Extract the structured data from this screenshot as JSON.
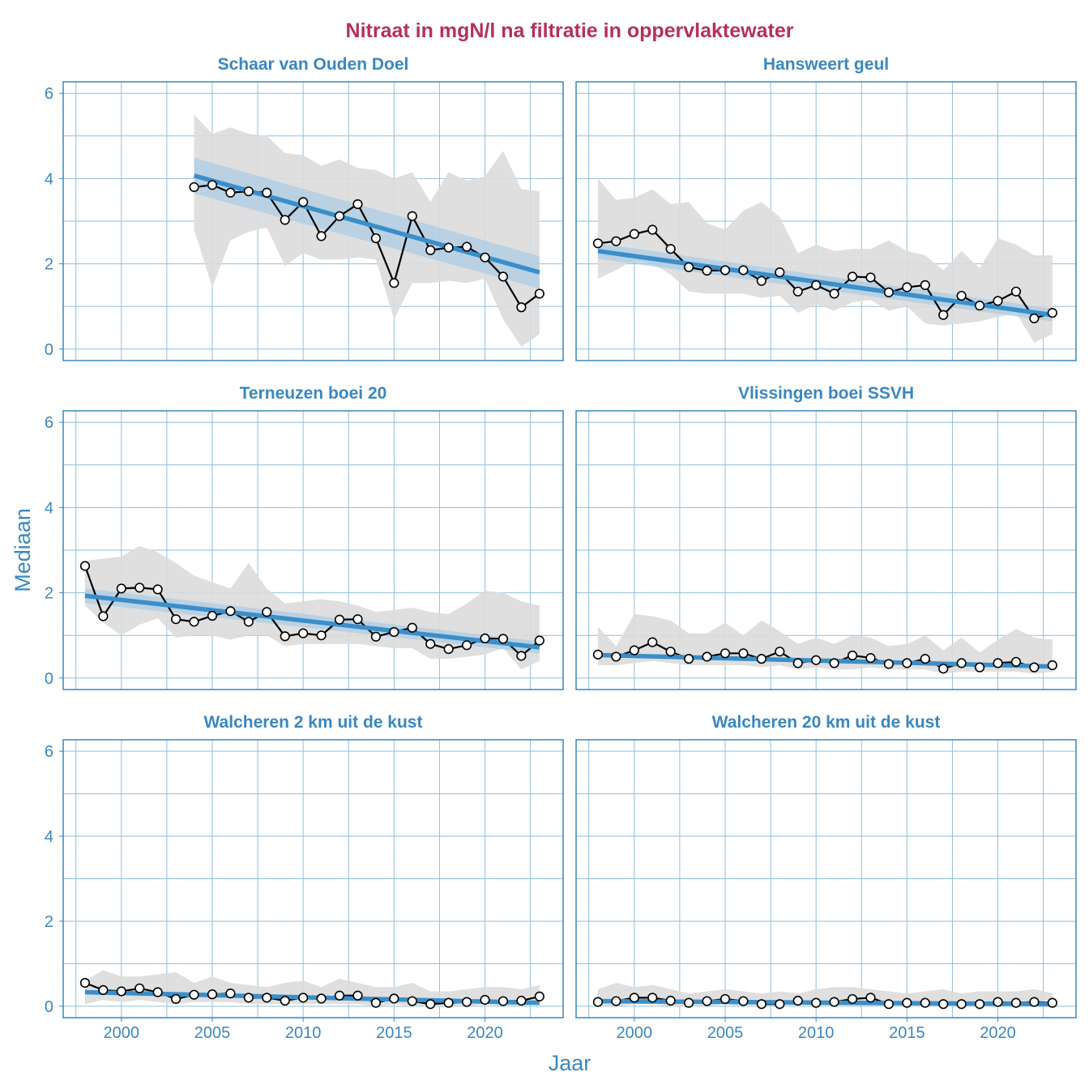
{
  "chart_data": {
    "type": "line",
    "title": "Nitraat in mgN/l na filtratie in oppervlaktewater",
    "xlabel": "Jaar",
    "ylabel": "Mediaan",
    "xlim": [
      1996.8,
      2024.3
    ],
    "ylim": [
      -0.27,
      6.27
    ],
    "xticks": [
      2000,
      2005,
      2010,
      2015,
      2020
    ],
    "yticks": [
      0,
      2,
      4,
      6
    ],
    "colors": {
      "title": "#b5315d",
      "axis": "#3a87bf",
      "trend": "#3a8ec9",
      "trend_band": "#a8cbe4",
      "range_band": "#dcdcdc",
      "points": "#000000"
    },
    "panels": [
      {
        "name": "Schaar van Ouden Doel",
        "x": [
          2004,
          2005,
          2006,
          2007,
          2008,
          2009,
          2010,
          2011,
          2012,
          2013,
          2014,
          2015,
          2016,
          2017,
          2018,
          2019,
          2020,
          2021,
          2022,
          2023
        ],
        "median": [
          3.8,
          3.85,
          3.67,
          3.7,
          3.67,
          3.03,
          3.45,
          2.65,
          3.12,
          3.4,
          2.6,
          1.55,
          3.12,
          2.32,
          2.38,
          2.4,
          2.15,
          1.7,
          0.98,
          1.3
        ],
        "range_low": [
          2.8,
          1.45,
          2.55,
          2.75,
          2.85,
          1.95,
          2.25,
          2.1,
          2.1,
          2.15,
          2.1,
          0.7,
          1.55,
          1.55,
          1.6,
          1.55,
          1.65,
          0.7,
          0.05,
          0.35
        ],
        "range_high": [
          5.5,
          5.05,
          5.2,
          5.05,
          5.0,
          4.6,
          4.55,
          4.3,
          4.45,
          4.25,
          4.2,
          4.0,
          4.15,
          3.45,
          4.15,
          3.95,
          4.05,
          4.65,
          3.75,
          3.7
        ],
        "trend": [
          4.07,
          1.8
        ],
        "trend_ci": [
          0.42,
          0.38
        ]
      },
      {
        "name": "Hansweert geul",
        "x": [
          1998,
          1999,
          2000,
          2001,
          2002,
          2003,
          2004,
          2005,
          2006,
          2007,
          2008,
          2009,
          2010,
          2011,
          2012,
          2013,
          2014,
          2015,
          2016,
          2017,
          2018,
          2019,
          2020,
          2021,
          2022,
          2023
        ],
        "median": [
          2.48,
          2.53,
          2.7,
          2.8,
          2.35,
          1.92,
          1.84,
          1.85,
          1.85,
          1.6,
          1.8,
          1.35,
          1.5,
          1.3,
          1.7,
          1.68,
          1.33,
          1.45,
          1.5,
          0.8,
          1.25,
          1.02,
          1.13,
          1.35,
          0.72,
          0.85
        ],
        "range_low": [
          1.65,
          1.85,
          2.1,
          2.0,
          1.75,
          1.35,
          1.3,
          1.3,
          1.3,
          1.2,
          1.25,
          0.85,
          1.05,
          0.9,
          1.1,
          1.15,
          0.9,
          1.0,
          0.6,
          0.55,
          0.6,
          0.65,
          0.75,
          0.85,
          0.15,
          0.35
        ],
        "range_high": [
          4.0,
          3.5,
          3.55,
          3.75,
          3.4,
          3.45,
          2.95,
          2.8,
          3.25,
          3.45,
          3.1,
          2.25,
          2.45,
          2.3,
          2.35,
          2.35,
          2.55,
          2.3,
          2.2,
          1.85,
          2.3,
          1.9,
          2.6,
          2.45,
          2.2,
          2.2
        ],
        "trend": [
          2.3,
          0.8
        ],
        "trend_ci": [
          0.18,
          0.15
        ]
      },
      {
        "name": "Terneuzen boei 20",
        "x": [
          1998,
          1999,
          2000,
          2001,
          2002,
          2003,
          2004,
          2005,
          2006,
          2007,
          2008,
          2009,
          2010,
          2011,
          2012,
          2013,
          2014,
          2015,
          2016,
          2017,
          2018,
          2019,
          2020,
          2021,
          2022,
          2023
        ],
        "median": [
          2.63,
          1.45,
          2.1,
          2.12,
          2.08,
          1.38,
          1.32,
          1.46,
          1.57,
          1.32,
          1.55,
          0.98,
          1.05,
          1.0,
          1.37,
          1.38,
          0.97,
          1.08,
          1.18,
          0.8,
          0.68,
          0.77,
          0.93,
          0.92,
          0.52,
          0.88
        ],
        "range_low": [
          1.7,
          1.3,
          1.0,
          1.25,
          1.4,
          0.95,
          1.0,
          1.0,
          0.9,
          1.0,
          1.0,
          0.75,
          0.8,
          0.8,
          0.8,
          0.8,
          0.75,
          0.7,
          0.7,
          0.45,
          0.45,
          0.5,
          0.55,
          0.7,
          0.2,
          0.4
        ],
        "range_high": [
          2.75,
          2.8,
          2.85,
          3.1,
          2.95,
          2.7,
          2.4,
          2.25,
          2.1,
          2.7,
          2.1,
          1.75,
          1.8,
          1.85,
          1.8,
          1.7,
          1.55,
          1.6,
          1.65,
          1.55,
          1.5,
          1.75,
          2.05,
          2.0,
          1.8,
          1.7
        ],
        "trend": [
          1.93,
          0.72
        ],
        "trend_ci": [
          0.17,
          0.14
        ]
      },
      {
        "name": "Vlissingen boei SSVH",
        "x": [
          1998,
          1999,
          2000,
          2001,
          2002,
          2003,
          2004,
          2005,
          2006,
          2007,
          2008,
          2009,
          2010,
          2011,
          2012,
          2013,
          2014,
          2015,
          2016,
          2017,
          2018,
          2019,
          2020,
          2021,
          2022,
          2023
        ],
        "median": [
          0.55,
          0.5,
          0.65,
          0.84,
          0.62,
          0.45,
          0.5,
          0.58,
          0.58,
          0.45,
          0.62,
          0.35,
          0.42,
          0.35,
          0.53,
          0.47,
          0.33,
          0.35,
          0.45,
          0.22,
          0.35,
          0.25,
          0.35,
          0.38,
          0.25,
          0.3
        ],
        "range_low": [
          0.3,
          0.3,
          0.35,
          0.4,
          0.35,
          0.3,
          0.3,
          0.3,
          0.3,
          0.25,
          0.3,
          0.2,
          0.25,
          0.2,
          0.2,
          0.25,
          0.2,
          0.2,
          0.2,
          0.1,
          0.15,
          0.15,
          0.15,
          0.15,
          0.1,
          0.15
        ],
        "range_high": [
          1.2,
          0.75,
          1.5,
          1.45,
          1.35,
          1.05,
          1.05,
          1.3,
          1.0,
          1.35,
          1.1,
          0.8,
          0.95,
          0.8,
          1.0,
          0.95,
          0.75,
          0.8,
          1.0,
          0.65,
          0.95,
          0.6,
          0.9,
          1.15,
          0.95,
          0.9
        ],
        "trend": [
          0.54,
          0.27
        ],
        "trend_ci": [
          0.05,
          0.05
        ]
      },
      {
        "name": "Walcheren 2 km uit de kust",
        "x": [
          1998,
          1999,
          2000,
          2001,
          2002,
          2003,
          2004,
          2005,
          2006,
          2007,
          2008,
          2009,
          2010,
          2011,
          2012,
          2013,
          2014,
          2015,
          2016,
          2017,
          2018,
          2019,
          2020,
          2021,
          2022,
          2023
        ],
        "median": [
          0.55,
          0.38,
          0.35,
          0.42,
          0.33,
          0.17,
          0.27,
          0.28,
          0.3,
          0.2,
          0.2,
          0.13,
          0.2,
          0.18,
          0.25,
          0.25,
          0.08,
          0.18,
          0.12,
          0.05,
          0.08,
          0.1,
          0.15,
          0.12,
          0.13,
          0.23
        ],
        "range_low": [
          0.05,
          0.15,
          0.1,
          0.15,
          0.1,
          0.05,
          0.1,
          0.1,
          0.1,
          0.05,
          0.05,
          0.05,
          0.05,
          0.05,
          0.05,
          0.05,
          0.0,
          0.05,
          0.0,
          0.0,
          0.0,
          0.0,
          0.05,
          0.0,
          0.0,
          0.05
        ],
        "range_high": [
          0.6,
          0.85,
          0.7,
          0.7,
          0.75,
          0.8,
          0.55,
          0.7,
          0.55,
          0.5,
          0.45,
          0.55,
          0.6,
          0.45,
          0.65,
          0.55,
          0.45,
          0.45,
          0.55,
          0.35,
          0.35,
          0.4,
          0.45,
          0.45,
          0.4,
          0.5
        ],
        "trend": [
          0.33,
          0.08
        ],
        "trend_ci": [
          0.05,
          0.04
        ]
      },
      {
        "name": "Walcheren 20 km uit de kust",
        "x": [
          1998,
          1999,
          2000,
          2001,
          2002,
          2003,
          2004,
          2005,
          2006,
          2007,
          2008,
          2009,
          2010,
          2011,
          2012,
          2013,
          2014,
          2015,
          2016,
          2017,
          2018,
          2019,
          2020,
          2021,
          2022,
          2023
        ],
        "median": [
          0.1,
          0.12,
          0.2,
          0.2,
          0.13,
          0.08,
          0.12,
          0.17,
          0.12,
          0.05,
          0.05,
          0.13,
          0.08,
          0.1,
          0.17,
          0.2,
          0.05,
          0.08,
          0.08,
          0.05,
          0.05,
          0.05,
          0.1,
          0.08,
          0.1,
          0.08
        ],
        "range_low": [
          0.0,
          0.0,
          0.05,
          0.05,
          0.0,
          0.0,
          0.0,
          0.05,
          0.0,
          0.0,
          0.0,
          0.0,
          0.0,
          0.0,
          0.0,
          0.0,
          0.0,
          0.0,
          0.0,
          0.0,
          0.0,
          0.0,
          0.0,
          0.0,
          0.0,
          0.0
        ],
        "range_high": [
          0.4,
          0.55,
          0.45,
          0.5,
          0.4,
          0.3,
          0.35,
          0.4,
          0.35,
          0.3,
          0.35,
          0.3,
          0.4,
          0.45,
          0.45,
          0.4,
          0.35,
          0.3,
          0.35,
          0.4,
          0.3,
          0.35,
          0.35,
          0.35,
          0.4,
          0.3
        ],
        "trend": [
          0.12,
          0.05
        ],
        "trend_ci": [
          0.03,
          0.03
        ]
      }
    ]
  }
}
